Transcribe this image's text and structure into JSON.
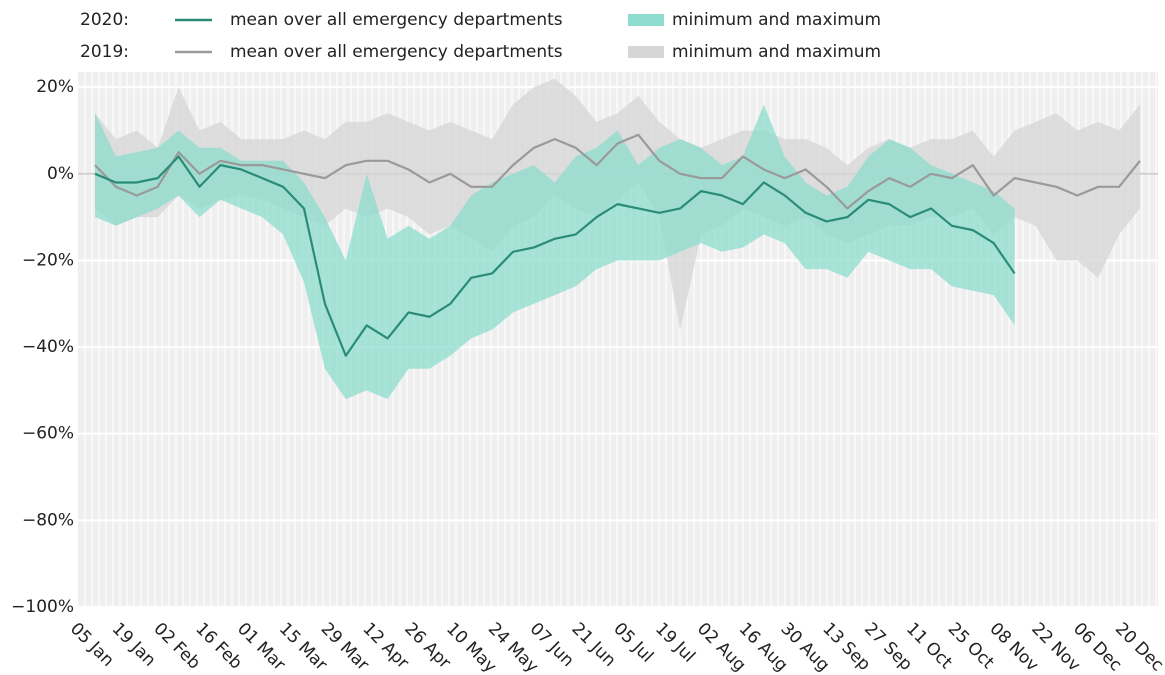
{
  "chart_data": {
    "type": "line-band",
    "categories": [
      "05 Jan",
      null,
      "19 Jan",
      null,
      "02 Feb",
      null,
      "16 Feb",
      null,
      "01 Mar",
      null,
      "15 Mar",
      null,
      "29 Mar",
      null,
      "12 Apr",
      null,
      "26 Apr",
      null,
      "10 May",
      null,
      "24 May",
      null,
      "07 Jun",
      null,
      "21 Jun",
      null,
      "05 Jul",
      null,
      "19 Jul",
      null,
      "02 Aug",
      null,
      "16 Aug",
      null,
      "30 Aug",
      null,
      "13 Sep",
      null,
      "27 Sep",
      null,
      "11 Oct",
      null,
      "25 Oct",
      null,
      "08 Nov",
      null,
      "22 Nov",
      null,
      "06 Dec",
      null,
      "20 Dec"
    ],
    "ylim": [
      -100,
      23.5
    ],
    "yticks": [
      {
        "value": -100,
        "label": "−100%"
      },
      {
        "value": -80,
        "label": "−80%"
      },
      {
        "value": -60,
        "label": "−60%"
      },
      {
        "value": -40,
        "label": "−40%"
      },
      {
        "value": -20,
        "label": "−20%"
      },
      {
        "value": 0,
        "label": "0%"
      },
      {
        "value": 20,
        "label": "20%"
      }
    ],
    "grid": true,
    "groups": [
      {
        "label": "2019:",
        "series": [
          {
            "name": "mean over all emergency departments",
            "kind": "line",
            "color": "#9a9a9a",
            "values": [
              2,
              -3,
              -5,
              -3,
              5,
              0,
              3,
              2,
              2,
              1,
              0,
              -1,
              2,
              3,
              3,
              1,
              -2,
              0,
              -3,
              -3,
              2,
              6,
              8,
              6,
              2,
              7,
              9,
              3,
              0,
              -1,
              -1,
              4,
              1,
              -1,
              1,
              -3,
              -8,
              -4,
              -1,
              -3,
              0,
              -1,
              2,
              -5,
              -1,
              -2,
              -3,
              -5,
              -3,
              -3,
              3
            ]
          },
          {
            "name": "minimum and maximum",
            "kind": "band",
            "color": "#d6d6d6",
            "low": [
              -8,
              -12,
              -10,
              -10,
              -5,
              -8,
              -6,
              -5,
              -6,
              -8,
              -10,
              -12,
              -8,
              -10,
              -8,
              -10,
              -14,
              -12,
              -15,
              -18,
              -12,
              -10,
              -5,
              -8,
              -10,
              -6,
              -2,
              -10,
              -36,
              -14,
              -12,
              -8,
              -10,
              -12,
              -10,
              -14,
              -16,
              -14,
              -12,
              -12,
              -10,
              -10,
              -8,
              -14,
              -10,
              -12,
              -20,
              -20,
              -24,
              -14,
              -8
            ],
            "high": [
              14,
              8,
              10,
              6,
              20,
              10,
              12,
              8,
              8,
              8,
              10,
              8,
              12,
              12,
              14,
              12,
              10,
              12,
              10,
              8,
              16,
              20,
              22,
              18,
              12,
              14,
              18,
              12,
              8,
              6,
              8,
              10,
              10,
              8,
              8,
              6,
              2,
              6,
              8,
              6,
              8,
              8,
              10,
              4,
              10,
              12,
              14,
              10,
              12,
              10,
              16
            ]
          }
        ]
      },
      {
        "label": "2020:",
        "series": [
          {
            "name": "mean over all emergency departments",
            "kind": "line",
            "color": "#2a8c78",
            "values": [
              0,
              -2,
              -2,
              -1,
              4,
              -3,
              2,
              1,
              -1,
              -3,
              -8,
              -30,
              -42,
              -35,
              -38,
              -32,
              -33,
              -30,
              -24,
              -23,
              -18,
              -17,
              -15,
              -14,
              -10,
              -7,
              -8,
              -9,
              -8,
              -4,
              -5,
              -7,
              -2,
              -5,
              -9,
              -11,
              -10,
              -6,
              -7,
              -10,
              -8,
              -12,
              -13,
              -16,
              -23,
              null,
              null,
              null,
              null,
              null,
              null
            ]
          },
          {
            "name": "minimum and maximum",
            "kind": "band",
            "color": "#8ddccd",
            "low": [
              -10,
              -12,
              -10,
              -8,
              -5,
              -10,
              -6,
              -8,
              -10,
              -14,
              -25,
              -45,
              -52,
              -50,
              -52,
              -45,
              -45,
              -42,
              -38,
              -36,
              -32,
              -30,
              -28,
              -26,
              -22,
              -20,
              -20,
              -20,
              -18,
              -16,
              -18,
              -17,
              -14,
              -16,
              -22,
              -22,
              -24,
              -18,
              -20,
              -22,
              -22,
              -26,
              -27,
              -28,
              -35,
              null,
              null,
              null,
              null,
              null,
              null
            ],
            "high": [
              14,
              4,
              5,
              6,
              10,
              6,
              6,
              3,
              3,
              3,
              -2,
              -10,
              -20,
              0,
              -15,
              -12,
              -15,
              -12,
              -5,
              -2,
              0,
              2,
              -2,
              4,
              6,
              10,
              2,
              6,
              8,
              6,
              2,
              4,
              16,
              4,
              -2,
              -5,
              -3,
              4,
              8,
              6,
              2,
              0,
              -2,
              -4,
              -8,
              null,
              null,
              null,
              null,
              null,
              null
            ]
          }
        ]
      }
    ]
  }
}
